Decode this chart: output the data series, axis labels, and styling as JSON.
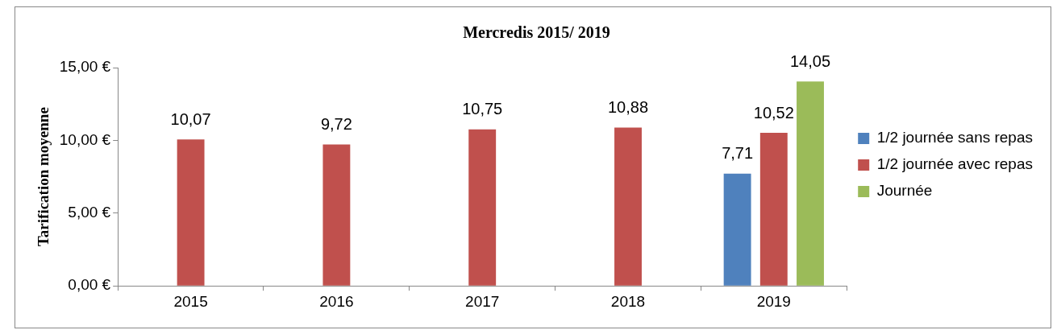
{
  "chart_data": {
    "type": "bar",
    "title": "Mercredis 2015/ 2019",
    "ylabel": "Tarification moyenne",
    "categories": [
      "2015",
      "2016",
      "2017",
      "2018",
      "2019"
    ],
    "series": [
      {
        "name": "1/2 journée sans repas",
        "color": "#4f81bd",
        "values": [
          null,
          null,
          null,
          null,
          7.71
        ],
        "value_labels": [
          null,
          null,
          null,
          null,
          "7,71"
        ]
      },
      {
        "name": "1/2 journée avec repas",
        "color": "#c0504d",
        "values": [
          10.07,
          9.72,
          10.75,
          10.88,
          10.52
        ],
        "value_labels": [
          "10,07",
          "9,72",
          "10,75",
          "10,88",
          "10,52"
        ]
      },
      {
        "name": "Journée",
        "color": "#9bbb59",
        "values": [
          null,
          null,
          null,
          null,
          14.05
        ],
        "value_labels": [
          null,
          null,
          null,
          null,
          "14,05"
        ]
      }
    ],
    "ylim": [
      0,
      15
    ],
    "yticks": [
      {
        "value": 0,
        "label": "0,00 €"
      },
      {
        "value": 5,
        "label": "5,00 €"
      },
      {
        "value": 10,
        "label": "10,00 €"
      },
      {
        "value": 15,
        "label": "15,00 €"
      }
    ],
    "grid": false,
    "legend": "right"
  }
}
